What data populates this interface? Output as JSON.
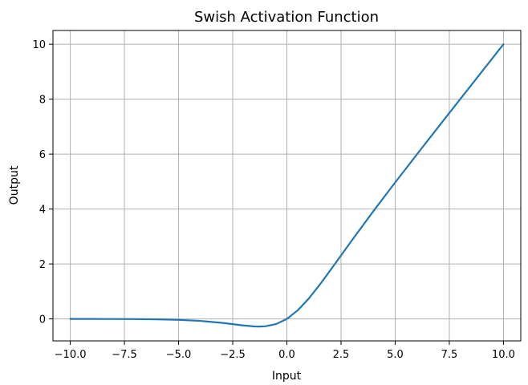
{
  "chart_data": {
    "type": "line",
    "title": "Swish Activation Function",
    "xlabel": "Input",
    "ylabel": "Output",
    "xlim": [
      -10.8,
      10.8
    ],
    "ylim": [
      -0.8,
      10.5
    ],
    "grid": true,
    "legend": "none",
    "x_ticks": [
      -10.0,
      -7.5,
      -5.0,
      -2.5,
      0.0,
      2.5,
      5.0,
      7.5,
      10.0
    ],
    "x_tick_labels": [
      "−10.0",
      "−7.5",
      "−5.0",
      "−2.5",
      "0.0",
      "2.5",
      "5.0",
      "7.5",
      "10.0"
    ],
    "y_ticks": [
      0,
      2,
      4,
      6,
      8,
      10
    ],
    "y_tick_labels": [
      "0",
      "2",
      "4",
      "6",
      "8",
      "10"
    ],
    "series": [
      {
        "color": "#1f77b4",
        "x": [
          -10,
          -9,
          -8,
          -7,
          -6,
          -5,
          -4,
          -3,
          -2.5,
          -2,
          -1.5,
          -1.278,
          -1,
          -0.5,
          0,
          0.5,
          1,
          1.5,
          2,
          2.5,
          3,
          4,
          5,
          6,
          7,
          8,
          9,
          10
        ],
        "y": [
          -0.0005,
          -0.0011,
          -0.0027,
          -0.0064,
          -0.0148,
          -0.0335,
          -0.0719,
          -0.1423,
          -0.1896,
          -0.2384,
          -0.2736,
          -0.2785,
          -0.2689,
          -0.1888,
          0,
          0.3112,
          0.7311,
          1.2264,
          1.7616,
          2.3104,
          2.8577,
          3.9281,
          4.9665,
          5.9852,
          6.9936,
          7.9973,
          8.9989,
          9.9995
        ]
      }
    ]
  },
  "colors": {
    "grid": "#b0b0b0",
    "axes": "#000000",
    "background": "#ffffff"
  }
}
